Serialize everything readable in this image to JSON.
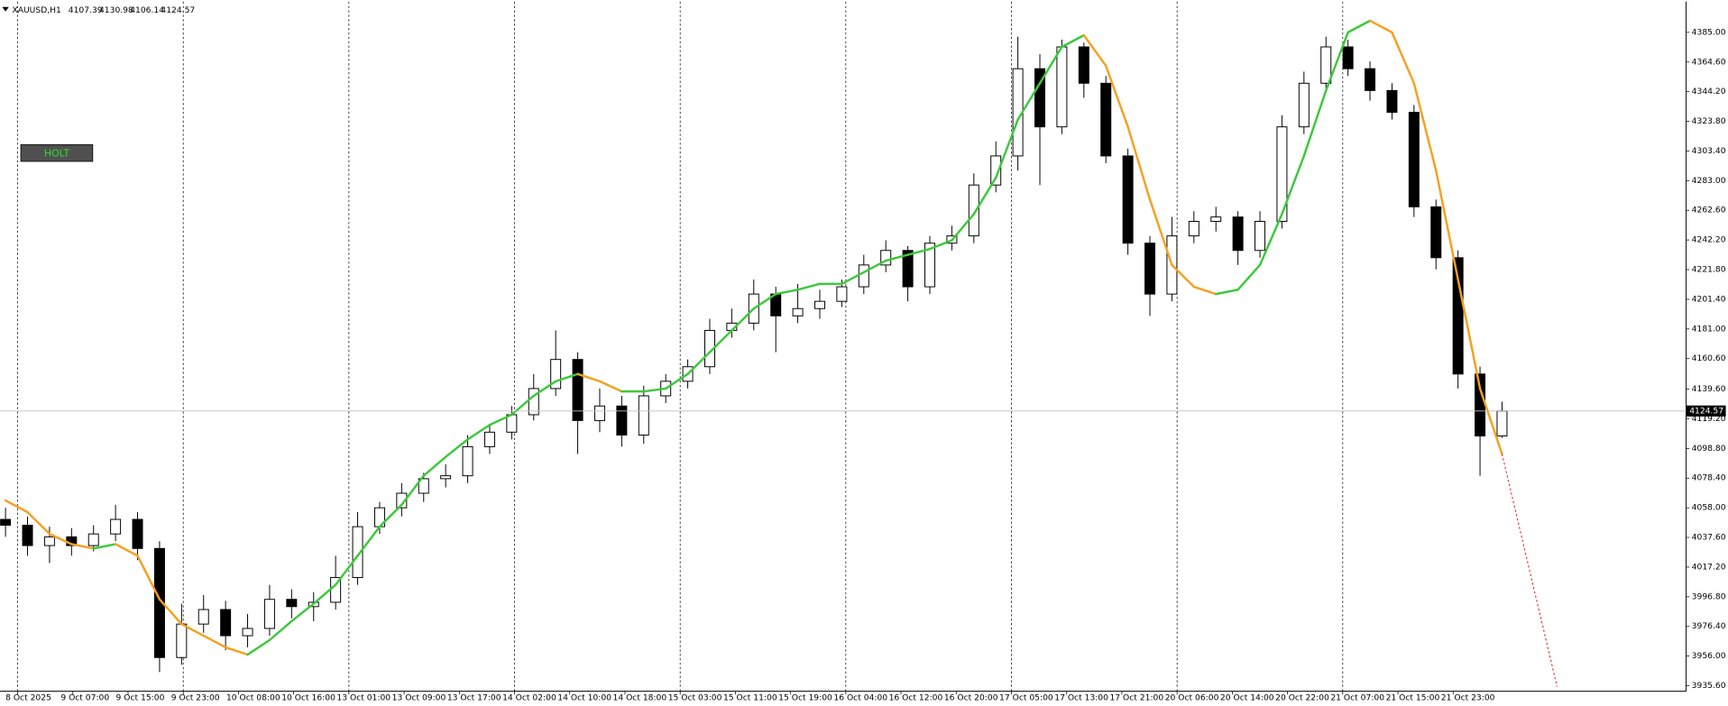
{
  "chart_data": {
    "type": "candlestick",
    "symbol": "XAUUSD,H1",
    "indicator_button": "HOLT",
    "time_labels": [
      "8 Oct 2025",
      "9 Oct 07:00",
      "9 Oct 15:00",
      "9 Oct 23:00",
      "10 Oct 08:00",
      "10 Oct 16:00",
      "13 Oct 01:00",
      "13 Oct 09:00",
      "13 Oct 17:00",
      "14 Oct 02:00",
      "14 Oct 10:00",
      "14 Oct 18:00",
      "15 Oct 03:00",
      "15 Oct 11:00",
      "15 Oct 19:00",
      "16 Oct 04:00",
      "16 Oct 12:00",
      "16 Oct 20:00",
      "17 Oct 05:00",
      "17 Oct 13:00",
      "17 Oct 21:00",
      "20 Oct 06:00",
      "20 Oct 14:00",
      "20 Oct 22:00",
      "21 Oct 07:00",
      "21 Oct 15:00",
      "21 Oct 23:00"
    ],
    "open": [
      4050,
      4046,
      4032,
      4038,
      4032,
      4040,
      4050,
      4030,
      3955,
      3978,
      3988,
      3970,
      3975,
      3995,
      3990,
      3993,
      4010,
      4045,
      4058,
      4068,
      4078,
      4080,
      4100,
      4110,
      4122,
      4140,
      4160,
      4118,
      4128,
      4108,
      4135,
      4145,
      4155,
      4180,
      4185,
      4205,
      4190,
      4195,
      4200,
      4210,
      4225,
      4235,
      4210,
      4240,
      4245,
      4280,
      4300,
      4360,
      4320,
      4375,
      4350,
      4300,
      4240,
      4205,
      4245,
      4255,
      4258,
      4235,
      4255,
      4320,
      4350,
      4375,
      4360,
      4345,
      4330,
      4265,
      4230,
      4150,
      4107.39
    ],
    "high": [
      4058,
      4052,
      4045,
      4044,
      4046,
      4060,
      4055,
      4035,
      3992,
      3998,
      3994,
      3985,
      4005,
      4002,
      4000,
      4025,
      4055,
      4062,
      4075,
      4082,
      4088,
      4108,
      4115,
      4128,
      4150,
      4180,
      4165,
      4140,
      4135,
      4142,
      4150,
      4160,
      4188,
      4195,
      4215,
      4210,
      4212,
      4208,
      4215,
      4232,
      4242,
      4238,
      4245,
      4252,
      4288,
      4310,
      4382,
      4370,
      4380,
      4378,
      4355,
      4305,
      4245,
      4258,
      4262,
      4265,
      4262,
      4262,
      4328,
      4358,
      4382,
      4380,
      4365,
      4350,
      4335,
      4270,
      4235,
      4155,
      4130.98
    ],
    "low": [
      4038,
      4025,
      4020,
      4025,
      4028,
      4035,
      4022,
      3945,
      3950,
      3972,
      3960,
      3962,
      3970,
      3982,
      3980,
      3988,
      4005,
      4040,
      4052,
      4062,
      4072,
      4075,
      4095,
      4105,
      4118,
      4135,
      4095,
      4110,
      4100,
      4102,
      4130,
      4140,
      4150,
      4175,
      4180,
      4165,
      4185,
      4188,
      4196,
      4205,
      4220,
      4200,
      4205,
      4235,
      4240,
      4275,
      4290,
      4280,
      4315,
      4340,
      4295,
      4232,
      4190,
      4200,
      4240,
      4248,
      4225,
      4230,
      4250,
      4315,
      4345,
      4355,
      4338,
      4325,
      4258,
      4222,
      4140,
      4080,
      4106.14
    ],
    "close": [
      4046,
      4032,
      4038,
      4032,
      4040,
      4050,
      4030,
      3955,
      3978,
      3988,
      3970,
      3975,
      3995,
      3990,
      3993,
      4010,
      4045,
      4058,
      4068,
      4078,
      4080,
      4100,
      4110,
      4122,
      4140,
      4160,
      4118,
      4128,
      4108,
      4135,
      4145,
      4155,
      4180,
      4185,
      4205,
      4190,
      4195,
      4200,
      4210,
      4225,
      4235,
      4210,
      4240,
      4245,
      4280,
      4300,
      4360,
      4320,
      4375,
      4350,
      4300,
      4240,
      4205,
      4245,
      4255,
      4258,
      4235,
      4255,
      4320,
      4350,
      4375,
      4360,
      4345,
      4330,
      4265,
      4230,
      4150,
      4107.39,
      4124.57
    ],
    "holt": [
      4063,
      4055,
      4040,
      4033,
      4030,
      4033,
      4025,
      3995,
      3978,
      3970,
      3962,
      3957,
      3967,
      3980,
      3992,
      4005,
      4025,
      4045,
      4060,
      4080,
      4093,
      4105,
      4115,
      4122,
      4135,
      4145,
      4150,
      4145,
      4138,
      4138,
      4140,
      4150,
      4165,
      4180,
      4195,
      4205,
      4208,
      4212,
      4212,
      4220,
      4228,
      4232,
      4236,
      4242,
      4260,
      4285,
      4325,
      4350,
      4375,
      4383,
      4362,
      4320,
      4270,
      4225,
      4210,
      4205,
      4208,
      4225,
      4260,
      4300,
      4345,
      4385,
      4393,
      4385,
      4350,
      4290,
      4215,
      4140,
      4095
    ],
    "forecast": [
      4095,
      3935
    ],
    "up_color": "#3cc83c",
    "down_color": "#f5a020",
    "forecast_color": "#e03030",
    "ylim": [
      3931.8,
      4406.2
    ],
    "yticks": [
      {
        "value": 4385.0,
        "label": "4385.00"
      },
      {
        "value": 4364.6,
        "label": "4364.60"
      },
      {
        "value": 4344.2,
        "label": "4344.20"
      },
      {
        "value": 4323.8,
        "label": "4323.80"
      },
      {
        "value": 4303.4,
        "label": "4303.40"
      },
      {
        "value": 4283.0,
        "label": "4283.00"
      },
      {
        "value": 4262.6,
        "label": "4262.60"
      },
      {
        "value": 4242.2,
        "label": "4242.20"
      },
      {
        "value": 4221.8,
        "label": "4221.80"
      },
      {
        "value": 4201.4,
        "label": "4201.40"
      },
      {
        "value": 4181.0,
        "label": "4181.00"
      },
      {
        "value": 4160.6,
        "label": "4160.60"
      },
      {
        "value": 4139.6,
        "label": "4139.60"
      },
      {
        "value": 4119.2,
        "label": "4119.20"
      },
      {
        "value": 4098.8,
        "label": "4098.80"
      },
      {
        "value": 4078.4,
        "label": "4078.40"
      },
      {
        "value": 4058.0,
        "label": "4058.00"
      },
      {
        "value": 4037.6,
        "label": "4037.60"
      },
      {
        "value": 4017.2,
        "label": "4017.20"
      },
      {
        "value": 3996.8,
        "label": "3996.80"
      },
      {
        "value": 3976.4,
        "label": "3976.40"
      },
      {
        "value": 3956.0,
        "label": "3956.00"
      },
      {
        "value": 3935.6,
        "label": "3935.60"
      }
    ]
  }
}
